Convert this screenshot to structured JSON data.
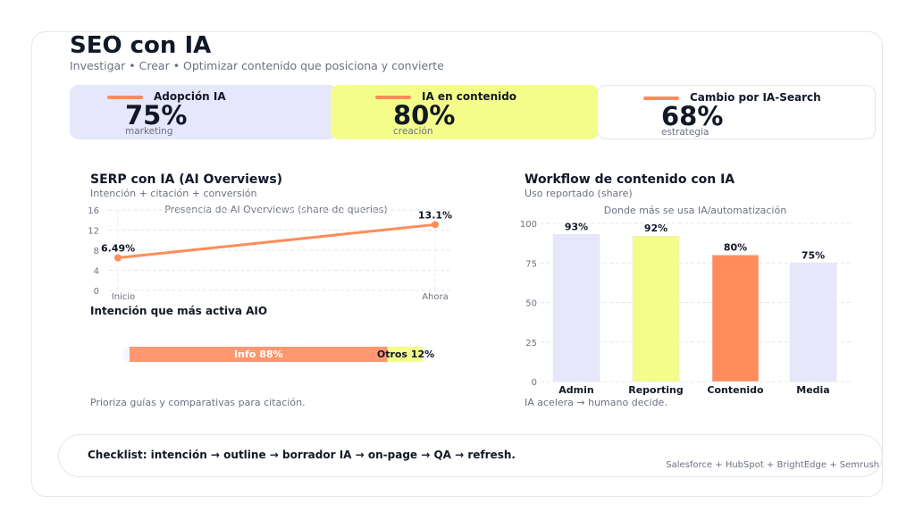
{
  "header": {
    "title": "SEO con IA",
    "subtitle": "Investigar • Crear • Optimizar contenido que posiciona y convierte"
  },
  "kpis": [
    {
      "label": "Adopción IA",
      "value": "75%",
      "sub": "marketing",
      "color": "#e6e7fb"
    },
    {
      "label": "IA en contenido",
      "value": "80%",
      "sub": "creación",
      "color": "#f4fd8a"
    },
    {
      "label": "Cambio por IA-Search",
      "value": "68%",
      "sub": "estrategia",
      "color": "#ffffff"
    }
  ],
  "left": {
    "title": "SERP con IA (AI Overviews)",
    "subtitle": "Intención + citación + conversión",
    "intent_title": "Intención que más activa AIO",
    "footnote": "Prioriza guías y comparativas para citación."
  },
  "right": {
    "title": "Workflow de contenido con IA",
    "subtitle": "Uso reportado (share)",
    "footnote": "IA acelera → humano decide."
  },
  "footer": {
    "checklist": "Checklist: intención → outline → borrador IA → on-page → QA → refresh.",
    "sources": "Salesforce + HubSpot + BrightEdge + Semrush"
  },
  "chart_data": [
    {
      "type": "line",
      "title": "Presencia de AI Overviews (share de queries)",
      "categories": [
        "Inicio",
        "Ahora"
      ],
      "values": [
        6.49,
        13.1
      ],
      "data_labels": [
        "6.49%",
        "13.1%"
      ],
      "ylim": [
        0,
        16
      ],
      "yticks": [
        0,
        4,
        8,
        12,
        16
      ],
      "grid": true,
      "color": "#ff8c5a"
    },
    {
      "type": "bar",
      "orientation": "horizontal-stacked",
      "segments": [
        {
          "label": "Info 88%",
          "value": 88,
          "color": "#ff9770"
        },
        {
          "label": "Otros 12%",
          "value": 12,
          "color": "#f4fd8a"
        }
      ]
    },
    {
      "type": "bar",
      "title": "Donde más se usa IA/automatización",
      "categories": [
        "Admin",
        "Reporting",
        "Contenido",
        "Media"
      ],
      "values": [
        93,
        92,
        80,
        75
      ],
      "data_labels": [
        "93%",
        "92%",
        "80%",
        "75%"
      ],
      "colors": [
        "#e6e7fb",
        "#f4fd8a",
        "#ff8c5a",
        "#e6e7fb"
      ],
      "ylim": [
        0,
        100
      ],
      "yticks": [
        0,
        25,
        50,
        75,
        100
      ],
      "grid": true
    }
  ]
}
